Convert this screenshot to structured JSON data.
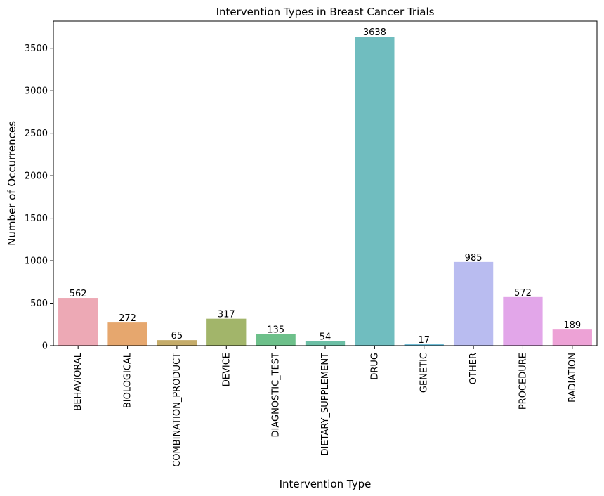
{
  "chart_data": {
    "type": "bar",
    "title": "Intervention Types in Breast Cancer Trials",
    "xlabel": "Intervention Type",
    "ylabel": "Number of Occurrences",
    "categories": [
      "BEHAVIORAL",
      "BIOLOGICAL",
      "COMBINATION_PRODUCT",
      "DEVICE",
      "DIAGNOSTIC_TEST",
      "DIETARY_SUPPLEMENT",
      "DRUG",
      "GENETIC",
      "OTHER",
      "PROCEDURE",
      "RADIATION"
    ],
    "values": [
      562,
      272,
      65,
      317,
      135,
      54,
      3638,
      17,
      985,
      572,
      189
    ],
    "colors": [
      "#eda9b5",
      "#e6a76e",
      "#c5ac6a",
      "#a2b56a",
      "#6dc08a",
      "#6cbfa5",
      "#70bdbf",
      "#71bcd5",
      "#b9bcf0",
      "#e2a6e9",
      "#eda2d6"
    ],
    "ylim": [
      0,
      3820
    ],
    "yticks": [
      0,
      500,
      1000,
      1500,
      2000,
      2500,
      3000,
      3500
    ],
    "grid": false,
    "legend": "none"
  }
}
